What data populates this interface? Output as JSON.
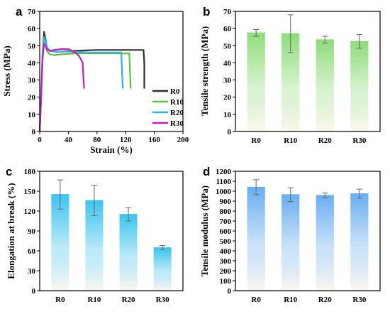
{
  "chart_data": [
    {
      "panel": "a",
      "type": "line",
      "xlabel": "Strain (%)",
      "ylabel": "Stress (MPa)",
      "xlim": [
        0,
        200
      ],
      "ylim": [
        0,
        70
      ],
      "xticks": [
        "0",
        "40",
        "80",
        "120",
        "160",
        "200"
      ],
      "yticks": [
        "0",
        "10",
        "20",
        "30",
        "40",
        "50",
        "60",
        "70"
      ],
      "legend_position": "right",
      "series": [
        {
          "name": "R0",
          "color": "#3b2a32",
          "x": [
            0,
            2,
            4,
            6,
            8,
            10,
            14,
            20,
            30,
            50,
            80,
            110,
            130,
            145,
            146,
            146
          ],
          "y": [
            0,
            20,
            45,
            58,
            54,
            49,
            47,
            46.5,
            46.5,
            47,
            47.5,
            47.5,
            47.5,
            47.5,
            40,
            25
          ]
        },
        {
          "name": "R10",
          "color": "#5fbf3f",
          "x": [
            0,
            2,
            4,
            6,
            8,
            10,
            14,
            20,
            30,
            50,
            80,
            110,
            125,
            126,
            127
          ],
          "y": [
            0,
            20,
            44,
            53,
            51,
            47,
            45,
            44.5,
            45,
            45.5,
            45.5,
            45.5,
            45.5,
            35,
            25
          ]
        },
        {
          "name": "R20",
          "color": "#2fb3e8",
          "x": [
            0,
            2,
            4,
            6,
            8,
            10,
            14,
            20,
            40,
            70,
            100,
            114,
            115,
            116
          ],
          "y": [
            0,
            22,
            46,
            55,
            53,
            49,
            47,
            46.5,
            46.5,
            46,
            46,
            46,
            35,
            25
          ]
        },
        {
          "name": "R30",
          "color": "#c21fb8",
          "x": [
            0,
            2,
            4,
            6,
            8,
            10,
            14,
            20,
            30,
            40,
            50,
            55,
            60,
            61,
            62
          ],
          "y": [
            0,
            20,
            42,
            51,
            50,
            48,
            47,
            47.5,
            48,
            48,
            46,
            44,
            40,
            32,
            25
          ]
        }
      ]
    },
    {
      "panel": "b",
      "type": "bar",
      "ylabel": "Tensile strength (MPa)",
      "ylim": [
        0,
        70
      ],
      "yticks": [
        "0",
        "10",
        "20",
        "30",
        "40",
        "50",
        "60",
        "70"
      ],
      "categories": [
        "R0",
        "R10",
        "R20",
        "R30"
      ],
      "values": [
        57.5,
        57,
        53.5,
        52.5
      ],
      "errors": [
        2,
        11,
        2,
        4
      ],
      "color": "#8edc7a"
    },
    {
      "panel": "c",
      "type": "bar",
      "ylabel": "Elongation at break (%)",
      "ylim": [
        0,
        180
      ],
      "yticks": [
        "0",
        "30",
        "60",
        "90",
        "120",
        "150",
        "180"
      ],
      "categories": [
        "R0",
        "R10",
        "R20",
        "R30"
      ],
      "values": [
        145,
        136,
        115,
        65
      ],
      "errors": [
        22,
        23,
        10,
        3
      ],
      "color": "#3cc3ef"
    },
    {
      "panel": "d",
      "type": "bar",
      "ylabel": "Tensile modulus  (MPa)",
      "ylim": [
        0,
        1200
      ],
      "yticks": [
        "0",
        "100",
        "200",
        "300",
        "400",
        "500",
        "600",
        "700",
        "800",
        "900",
        "1000",
        "1100",
        "1200"
      ],
      "categories": [
        "R0",
        "R10",
        "R20",
        "R30"
      ],
      "values": [
        1040,
        965,
        958,
        975
      ],
      "errors": [
        75,
        70,
        25,
        45
      ],
      "color": "#6aaef0"
    }
  ]
}
